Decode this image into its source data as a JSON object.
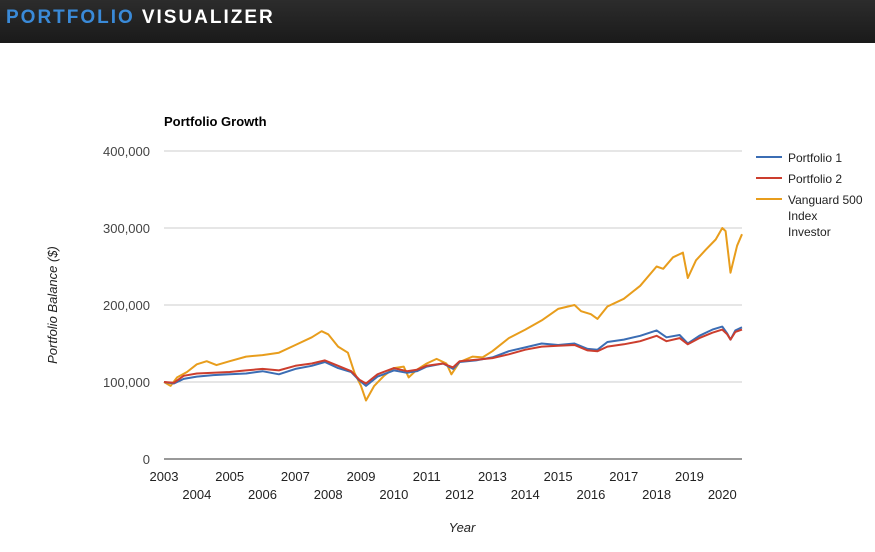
{
  "header": {
    "brand_part1": "PORTFOLIO",
    "brand_part2": "VISUALIZER"
  },
  "chart_data": {
    "type": "line",
    "title": "Portfolio Growth",
    "xlabel": "Year",
    "ylabel": "Portfolio Balance ($)",
    "xlim": [
      2003.0,
      2020.6
    ],
    "ylim": [
      0,
      400000
    ],
    "yticks": [
      {
        "value": 0,
        "label": "0"
      },
      {
        "value": 100000,
        "label": "100,000"
      },
      {
        "value": 200000,
        "label": "200,000"
      },
      {
        "value": 300000,
        "label": "300,000"
      },
      {
        "value": 400000,
        "label": "400,000"
      }
    ],
    "xticks_row1": [
      "2003",
      "2005",
      "2007",
      "2009",
      "2011",
      "2013",
      "2015",
      "2017",
      "2019"
    ],
    "xticks_row2": [
      "2004",
      "2006",
      "2008",
      "2010",
      "2012",
      "2014",
      "2016",
      "2018",
      "2020"
    ],
    "legend_position": "right",
    "series": [
      {
        "name": "Portfolio 1",
        "color": "#3b6db4",
        "points": [
          [
            2003.0,
            100000
          ],
          [
            2003.3,
            98000
          ],
          [
            2003.6,
            104000
          ],
          [
            2004.0,
            107000
          ],
          [
            2004.5,
            109000
          ],
          [
            2005.0,
            110000
          ],
          [
            2005.5,
            111000
          ],
          [
            2006.0,
            114000
          ],
          [
            2006.5,
            110000
          ],
          [
            2007.0,
            117000
          ],
          [
            2007.5,
            121000
          ],
          [
            2007.9,
            126000
          ],
          [
            2008.3,
            118000
          ],
          [
            2008.7,
            113000
          ],
          [
            2008.95,
            102000
          ],
          [
            2009.15,
            95000
          ],
          [
            2009.5,
            107000
          ],
          [
            2010.0,
            115000
          ],
          [
            2010.4,
            112000
          ],
          [
            2010.7,
            114000
          ],
          [
            2011.0,
            120000
          ],
          [
            2011.5,
            124000
          ],
          [
            2011.8,
            117000
          ],
          [
            2012.0,
            126000
          ],
          [
            2012.5,
            128000
          ],
          [
            2013.0,
            132000
          ],
          [
            2013.5,
            140000
          ],
          [
            2014.0,
            145000
          ],
          [
            2014.5,
            150000
          ],
          [
            2015.0,
            148000
          ],
          [
            2015.5,
            150000
          ],
          [
            2015.9,
            143000
          ],
          [
            2016.2,
            142000
          ],
          [
            2016.5,
            152000
          ],
          [
            2017.0,
            155000
          ],
          [
            2017.5,
            160000
          ],
          [
            2018.0,
            167000
          ],
          [
            2018.3,
            158000
          ],
          [
            2018.7,
            161000
          ],
          [
            2018.95,
            150000
          ],
          [
            2019.3,
            160000
          ],
          [
            2019.7,
            168000
          ],
          [
            2020.0,
            172000
          ],
          [
            2020.15,
            163000
          ],
          [
            2020.25,
            155000
          ],
          [
            2020.4,
            167000
          ],
          [
            2020.6,
            171000
          ]
        ]
      },
      {
        "name": "Portfolio 2",
        "color": "#cc3e2e",
        "points": [
          [
            2003.0,
            100000
          ],
          [
            2003.3,
            99000
          ],
          [
            2003.6,
            108000
          ],
          [
            2004.0,
            111000
          ],
          [
            2004.5,
            112000
          ],
          [
            2005.0,
            113000
          ],
          [
            2005.5,
            115000
          ],
          [
            2006.0,
            117000
          ],
          [
            2006.5,
            115000
          ],
          [
            2007.0,
            121000
          ],
          [
            2007.5,
            124000
          ],
          [
            2007.9,
            128000
          ],
          [
            2008.3,
            121000
          ],
          [
            2008.7,
            114000
          ],
          [
            2008.95,
            103000
          ],
          [
            2009.15,
            98000
          ],
          [
            2009.5,
            110000
          ],
          [
            2010.0,
            118000
          ],
          [
            2010.4,
            114000
          ],
          [
            2010.7,
            116000
          ],
          [
            2011.0,
            121000
          ],
          [
            2011.5,
            124000
          ],
          [
            2011.8,
            119000
          ],
          [
            2012.0,
            127000
          ],
          [
            2012.5,
            129000
          ],
          [
            2013.0,
            131000
          ],
          [
            2013.5,
            136000
          ],
          [
            2014.0,
            142000
          ],
          [
            2014.5,
            146000
          ],
          [
            2015.0,
            147000
          ],
          [
            2015.5,
            148000
          ],
          [
            2015.9,
            141000
          ],
          [
            2016.2,
            140000
          ],
          [
            2016.5,
            146000
          ],
          [
            2017.0,
            149000
          ],
          [
            2017.5,
            153000
          ],
          [
            2018.0,
            160000
          ],
          [
            2018.3,
            153000
          ],
          [
            2018.7,
            157000
          ],
          [
            2018.95,
            149000
          ],
          [
            2019.3,
            157000
          ],
          [
            2019.7,
            164000
          ],
          [
            2020.0,
            168000
          ],
          [
            2020.15,
            162000
          ],
          [
            2020.25,
            155000
          ],
          [
            2020.4,
            165000
          ],
          [
            2020.6,
            168000
          ]
        ]
      },
      {
        "name": "Vanguard 500 Index Investor",
        "color": "#e89d1c",
        "points": [
          [
            2003.0,
            100000
          ],
          [
            2003.2,
            95000
          ],
          [
            2003.4,
            106000
          ],
          [
            2003.7,
            113000
          ],
          [
            2004.0,
            123000
          ],
          [
            2004.3,
            127000
          ],
          [
            2004.6,
            122000
          ],
          [
            2005.0,
            127000
          ],
          [
            2005.5,
            133000
          ],
          [
            2006.0,
            135000
          ],
          [
            2006.5,
            138000
          ],
          [
            2007.0,
            148000
          ],
          [
            2007.5,
            158000
          ],
          [
            2007.8,
            166000
          ],
          [
            2008.0,
            162000
          ],
          [
            2008.3,
            146000
          ],
          [
            2008.6,
            138000
          ],
          [
            2008.8,
            112000
          ],
          [
            2009.0,
            95000
          ],
          [
            2009.15,
            76000
          ],
          [
            2009.4,
            95000
          ],
          [
            2009.7,
            108000
          ],
          [
            2010.0,
            118000
          ],
          [
            2010.3,
            120000
          ],
          [
            2010.45,
            106000
          ],
          [
            2010.7,
            116000
          ],
          [
            2011.0,
            124000
          ],
          [
            2011.3,
            130000
          ],
          [
            2011.6,
            124000
          ],
          [
            2011.75,
            110000
          ],
          [
            2012.0,
            126000
          ],
          [
            2012.4,
            133000
          ],
          [
            2012.7,
            132000
          ],
          [
            2013.0,
            140000
          ],
          [
            2013.5,
            157000
          ],
          [
            2014.0,
            168000
          ],
          [
            2014.5,
            180000
          ],
          [
            2015.0,
            195000
          ],
          [
            2015.5,
            200000
          ],
          [
            2015.7,
            192000
          ],
          [
            2016.0,
            188000
          ],
          [
            2016.2,
            182000
          ],
          [
            2016.5,
            198000
          ],
          [
            2017.0,
            208000
          ],
          [
            2017.5,
            225000
          ],
          [
            2018.0,
            250000
          ],
          [
            2018.2,
            247000
          ],
          [
            2018.5,
            262000
          ],
          [
            2018.8,
            268000
          ],
          [
            2018.95,
            235000
          ],
          [
            2019.2,
            258000
          ],
          [
            2019.5,
            272000
          ],
          [
            2019.8,
            285000
          ],
          [
            2020.0,
            300000
          ],
          [
            2020.1,
            296000
          ],
          [
            2020.25,
            242000
          ],
          [
            2020.45,
            277000
          ],
          [
            2020.6,
            292000
          ]
        ]
      }
    ]
  }
}
